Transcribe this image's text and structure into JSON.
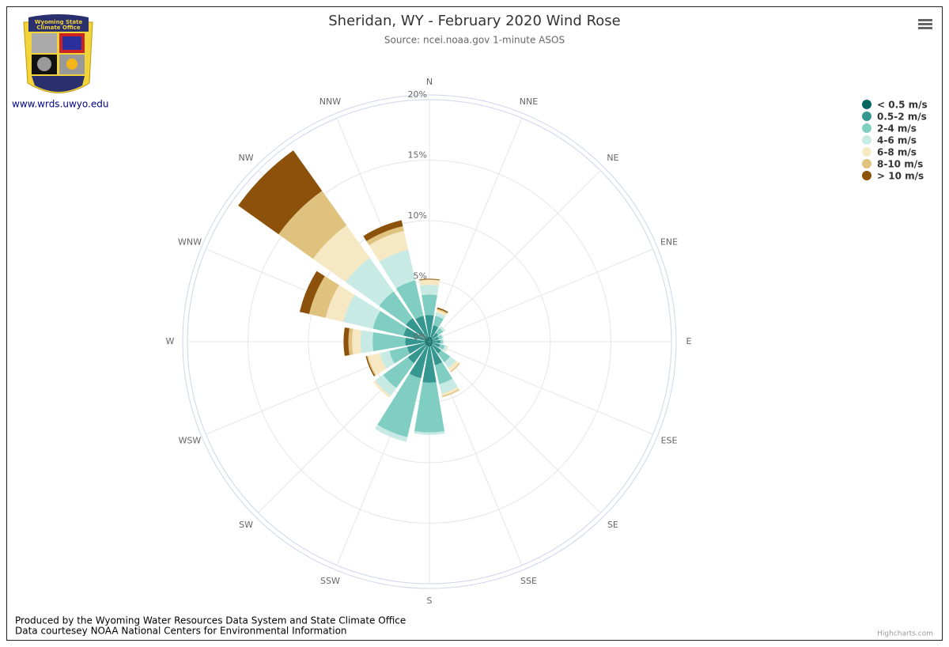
{
  "chart_data": {
    "type": "windrose",
    "title": "Sheridan, WY - February 2020 Wind Rose",
    "subtitle": "Source: ncei.noaa.gov 1-minute ASOS",
    "logo_text": [
      "Wyoming State",
      "Climate Office"
    ],
    "link": "www.wrds.uwyo.edu",
    "credits": [
      "Produced by the Wyoming Water Resources Data System and State Climate Office",
      "Data courtesey NOAA National Centers for Environmental Information"
    ],
    "highcharts": "Highcharts.com",
    "categories": [
      "N",
      "NNE",
      "NE",
      "ENE",
      "E",
      "ESE",
      "SE",
      "SSE",
      "S",
      "SSW",
      "SW",
      "WSW",
      "W",
      "WNW",
      "NW",
      "NNW"
    ],
    "ylim": [
      0,
      20
    ],
    "yticks": [
      {
        "value": 0,
        "label": "0%"
      },
      {
        "value": 5,
        "label": "5%"
      },
      {
        "value": 10,
        "label": "10%"
      },
      {
        "value": 15,
        "label": "15%"
      },
      {
        "value": 20,
        "label": "20%"
      }
    ],
    "legend": "top-right",
    "series": [
      {
        "name": "< 0.5 m/s",
        "color": "#01665e",
        "values": [
          0.4,
          0.4,
          0.3,
          0.3,
          0.3,
          0.3,
          0.3,
          0.4,
          0.4,
          0.4,
          0.4,
          0.4,
          0.4,
          0.4,
          0.4,
          0.4
        ]
      },
      {
        "name": "0.5-2 m/s",
        "color": "#35978f",
        "values": [
          1.8,
          1.0,
          0.6,
          0.5,
          0.6,
          0.6,
          0.9,
          1.6,
          3.0,
          2.7,
          1.8,
          1.5,
          1.6,
          1.8,
          2.0,
          1.8
        ]
      },
      {
        "name": "2-4 m/s",
        "color": "#80cdc1",
        "values": [
          1.7,
          0.8,
          0.5,
          0.3,
          0.2,
          0.4,
          0.9,
          1.6,
          4.1,
          5.0,
          2.5,
          1.5,
          2.7,
          2.6,
          2.7,
          3.0
        ]
      },
      {
        "name": "4-6 m/s",
        "color": "#c7eae5",
        "values": [
          0.8,
          0.3,
          0.2,
          0.1,
          0.1,
          0.2,
          0.6,
          0.8,
          0.2,
          0.4,
          0.8,
          0.8,
          1.0,
          2.5,
          3.4,
          2.6
        ]
      },
      {
        "name": "6-8 m/s",
        "color": "#f6e8c3",
        "values": [
          0.4,
          0.2,
          0,
          0,
          0,
          0.1,
          0.3,
          0.2,
          0,
          0,
          0.2,
          1.0,
          0.7,
          1.5,
          3.3,
          1.6
        ]
      },
      {
        "name": "8-10 m/s",
        "color": "#dfc27d",
        "values": [
          0.05,
          0.1,
          0,
          0,
          0,
          0,
          0.1,
          0.1,
          0,
          0,
          0,
          0.1,
          0.3,
          1.4,
          3.5,
          0.4
        ]
      },
      {
        "name": "> 10 m/s",
        "color": "#8c510a",
        "values": [
          0.05,
          0.1,
          0,
          0,
          0,
          0,
          0,
          0,
          0,
          0,
          0,
          0.1,
          0.4,
          0.8,
          4.1,
          0.5
        ]
      }
    ]
  }
}
